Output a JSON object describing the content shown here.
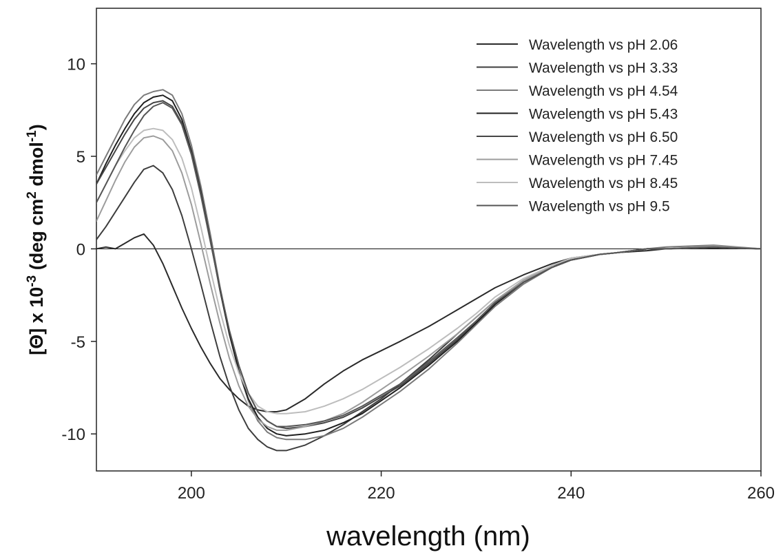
{
  "chart_data": {
    "type": "line",
    "xlabel": "wavelength (nm)",
    "ylabel": {
      "prefix": "[Θ] x 10",
      "exp1": "-3",
      "mid": " (deg cm",
      "exp2": "2",
      "mid2": " dmol",
      "exp3": "-1",
      "suffix": ")"
    },
    "xlim": [
      190,
      260
    ],
    "ylim": [
      -12,
      13
    ],
    "xticks": [
      200,
      220,
      240,
      260
    ],
    "yticks": [
      -10,
      -5,
      0,
      5,
      10
    ],
    "xtick_labels": [
      "200",
      "220",
      "240",
      "260"
    ],
    "ytick_labels": [
      "-10",
      "-5",
      "0",
      "5",
      "10"
    ],
    "grid": false,
    "zero_line": true,
    "legend_position": "top-right",
    "series": [
      {
        "name": "Wavelength vs pH 2.06",
        "color": "#2a2a2a",
        "x": [
          190,
          191,
          192,
          193,
          194,
          195,
          196,
          197,
          198,
          199,
          200,
          201,
          202,
          203,
          204,
          205,
          206,
          207,
          208,
          209,
          210,
          212,
          214,
          216,
          218,
          220,
          222,
          225,
          228,
          230,
          232,
          235,
          238,
          240,
          243,
          245,
          248,
          250,
          255,
          260
        ],
        "y": [
          0,
          0.1,
          0,
          0.3,
          0.6,
          0.8,
          0.2,
          -0.8,
          -2,
          -3.2,
          -4.3,
          -5.3,
          -6.2,
          -7,
          -7.6,
          -8.1,
          -8.5,
          -8.7,
          -8.8,
          -8.8,
          -8.7,
          -8.1,
          -7.3,
          -6.6,
          -6,
          -5.5,
          -5,
          -4.2,
          -3.3,
          -2.7,
          -2.1,
          -1.4,
          -0.8,
          -0.5,
          -0.3,
          -0.2,
          -0.1,
          0,
          0.05,
          0
        ]
      },
      {
        "name": "Wavelength vs pH 3.33",
        "color": "#3d3d3d",
        "x": [
          190,
          191,
          192,
          193,
          194,
          195,
          196,
          197,
          198,
          199,
          200,
          201,
          202,
          203,
          204,
          205,
          206,
          207,
          208,
          209,
          210,
          212,
          214,
          216,
          218,
          220,
          222,
          225,
          228,
          230,
          232,
          235,
          238,
          240,
          243,
          245,
          248,
          250,
          255,
          260
        ],
        "y": [
          0.5,
          1.2,
          2,
          2.8,
          3.6,
          4.3,
          4.5,
          4.1,
          3.2,
          1.8,
          0,
          -1.9,
          -3.9,
          -5.8,
          -7.4,
          -8.7,
          -9.7,
          -10.3,
          -10.7,
          -10.9,
          -10.9,
          -10.6,
          -10.1,
          -9.5,
          -8.8,
          -8.1,
          -7.3,
          -6,
          -4.6,
          -3.7,
          -2.8,
          -1.7,
          -0.9,
          -0.6,
          -0.3,
          -0.2,
          0,
          0,
          0.1,
          0
        ]
      },
      {
        "name": "Wavelength vs pH 4.54",
        "color": "#7a7a7a",
        "x": [
          190,
          191,
          192,
          193,
          194,
          195,
          196,
          197,
          198,
          199,
          200,
          201,
          202,
          203,
          204,
          205,
          206,
          207,
          208,
          209,
          210,
          212,
          214,
          216,
          218,
          220,
          222,
          225,
          228,
          230,
          232,
          235,
          238,
          240,
          243,
          245,
          248,
          250,
          255,
          260
        ],
        "y": [
          4,
          5,
          6,
          7,
          7.8,
          8.3,
          8.5,
          8.6,
          8.3,
          7.3,
          5.6,
          3.4,
          0.8,
          -2,
          -4.5,
          -6.6,
          -8.2,
          -9.3,
          -9.9,
          -10.2,
          -10.3,
          -10.3,
          -10.1,
          -9.7,
          -9.1,
          -8.4,
          -7.7,
          -6.5,
          -5.1,
          -4.1,
          -3.1,
          -1.9,
          -1,
          -0.6,
          -0.3,
          -0.2,
          0,
          0.1,
          0.2,
          0
        ]
      },
      {
        "name": "Wavelength vs pH 5.43",
        "color": "#1f1f1f",
        "x": [
          190,
          191,
          192,
          193,
          194,
          195,
          196,
          197,
          198,
          199,
          200,
          201,
          202,
          203,
          204,
          205,
          206,
          207,
          208,
          209,
          210,
          212,
          214,
          216,
          218,
          220,
          222,
          225,
          228,
          230,
          232,
          235,
          238,
          240,
          243,
          245,
          248,
          250,
          255,
          260
        ],
        "y": [
          3.5,
          4.6,
          5.6,
          6.5,
          7.3,
          7.9,
          8.2,
          8.3,
          8,
          7,
          5.3,
          3.1,
          0.5,
          -2.2,
          -4.6,
          -6.6,
          -8.1,
          -9.1,
          -9.7,
          -10,
          -10.1,
          -10,
          -9.8,
          -9.4,
          -8.9,
          -8.2,
          -7.5,
          -6.3,
          -5,
          -4,
          -3,
          -1.8,
          -1,
          -0.6,
          -0.3,
          -0.2,
          0,
          0,
          0.1,
          0
        ]
      },
      {
        "name": "Wavelength vs pH 6.50",
        "color": "#454545",
        "x": [
          190,
          191,
          192,
          193,
          194,
          195,
          196,
          197,
          198,
          199,
          200,
          201,
          202,
          203,
          204,
          205,
          206,
          207,
          208,
          209,
          210,
          212,
          214,
          216,
          218,
          220,
          222,
          225,
          228,
          230,
          232,
          235,
          238,
          240,
          243,
          245,
          248,
          250,
          255,
          260
        ],
        "y": [
          3.5,
          4.4,
          5.3,
          6.2,
          7,
          7.6,
          7.9,
          8,
          7.7,
          6.8,
          5.2,
          3,
          0.5,
          -2.1,
          -4.4,
          -6.3,
          -7.8,
          -8.8,
          -9.3,
          -9.6,
          -9.7,
          -9.6,
          -9.4,
          -9.1,
          -8.6,
          -8,
          -7.4,
          -6.2,
          -4.9,
          -3.9,
          -2.9,
          -1.8,
          -1,
          -0.6,
          -0.3,
          -0.2,
          0,
          0,
          0.1,
          0
        ]
      },
      {
        "name": "Wavelength vs pH 7.45",
        "color": "#9c9c9c",
        "x": [
          190,
          191,
          192,
          193,
          194,
          195,
          196,
          197,
          198,
          199,
          200,
          201,
          202,
          203,
          204,
          205,
          206,
          207,
          208,
          209,
          210,
          212,
          214,
          216,
          218,
          220,
          222,
          225,
          228,
          230,
          232,
          235,
          238,
          240,
          243,
          245,
          248,
          250,
          255,
          260
        ],
        "y": [
          1.5,
          2.6,
          3.7,
          4.7,
          5.5,
          6,
          6.1,
          5.9,
          5.3,
          4.1,
          2.4,
          0.3,
          -1.9,
          -4,
          -5.9,
          -7.4,
          -8.5,
          -9.2,
          -9.6,
          -9.8,
          -9.8,
          -9.6,
          -9.3,
          -8.9,
          -8.3,
          -7.6,
          -6.9,
          -5.8,
          -4.6,
          -3.7,
          -2.8,
          -1.7,
          -0.9,
          -0.5,
          -0.3,
          -0.2,
          0,
          0,
          0.15,
          0
        ]
      },
      {
        "name": "Wavelength vs pH 8.45",
        "color": "#bdbdbd",
        "x": [
          190,
          191,
          192,
          193,
          194,
          195,
          196,
          197,
          198,
          199,
          200,
          201,
          202,
          203,
          204,
          205,
          206,
          207,
          208,
          209,
          210,
          212,
          214,
          216,
          218,
          220,
          222,
          225,
          228,
          230,
          232,
          235,
          238,
          240,
          243,
          245,
          248,
          250,
          255,
          260
        ],
        "y": [
          2.5,
          3.5,
          4.5,
          5.3,
          6,
          6.4,
          6.5,
          6.4,
          5.9,
          4.9,
          3.3,
          1.2,
          -1.1,
          -3.3,
          -5.2,
          -6.7,
          -7.8,
          -8.5,
          -8.8,
          -8.9,
          -8.9,
          -8.8,
          -8.5,
          -8.1,
          -7.6,
          -7,
          -6.4,
          -5.4,
          -4.3,
          -3.5,
          -2.6,
          -1.6,
          -0.9,
          -0.5,
          -0.3,
          -0.2,
          0,
          0,
          0.1,
          0
        ]
      },
      {
        "name": "Wavelength vs pH 9.5",
        "color": "#555555",
        "x": [
          190,
          191,
          192,
          193,
          194,
          195,
          196,
          197,
          198,
          199,
          200,
          201,
          202,
          203,
          204,
          205,
          206,
          207,
          208,
          209,
          210,
          212,
          214,
          216,
          218,
          220,
          222,
          225,
          228,
          230,
          232,
          235,
          238,
          240,
          243,
          245,
          248,
          250,
          255,
          260
        ],
        "y": [
          2.5,
          3.5,
          4.5,
          5.5,
          6.4,
          7.2,
          7.7,
          7.9,
          7.6,
          6.7,
          5.1,
          2.9,
          0.4,
          -2.1,
          -4.4,
          -6.3,
          -7.8,
          -8.8,
          -9.3,
          -9.6,
          -9.6,
          -9.5,
          -9.3,
          -9,
          -8.5,
          -7.9,
          -7.3,
          -6.1,
          -4.8,
          -3.9,
          -2.9,
          -1.8,
          -1,
          -0.6,
          -0.3,
          -0.2,
          0,
          0,
          0.1,
          0
        ]
      }
    ]
  }
}
